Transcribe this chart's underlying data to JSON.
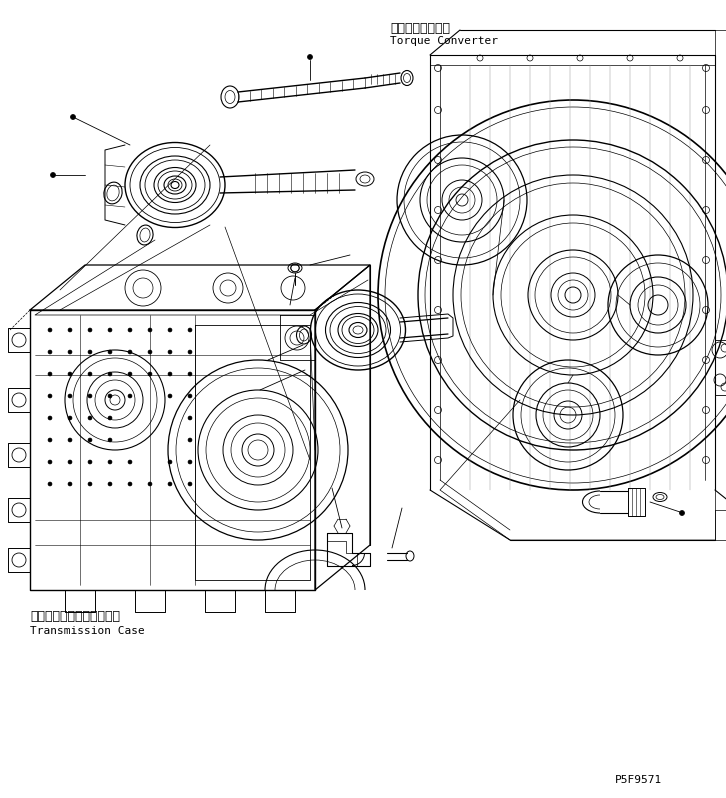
{
  "background_color": "#ffffff",
  "line_color": "#000000",
  "label_torque_converter_jp": "トルクコンバータ",
  "label_torque_converter_en": "Torque Converter",
  "label_transmission_case_jp": "トランスミッションケース",
  "label_transmission_case_en": "Transmission Case",
  "part_number": "P5F9571",
  "fig_width": 7.26,
  "fig_height": 7.98,
  "dpi": 100
}
